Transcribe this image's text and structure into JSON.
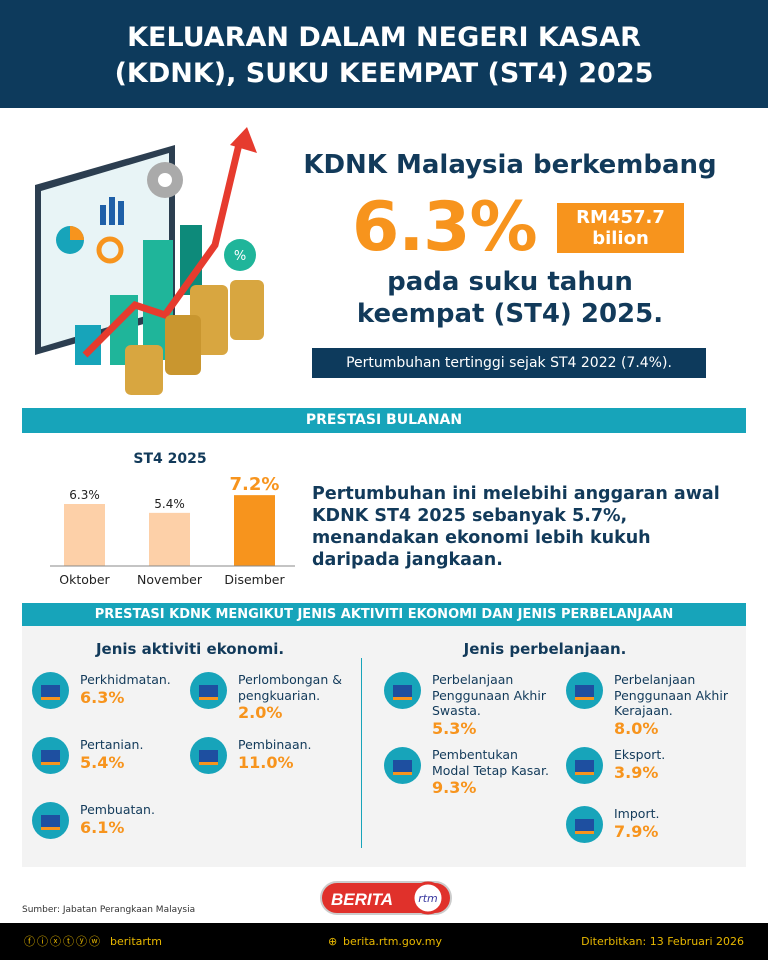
{
  "header": {
    "title_line1": "KELUARAN DALAM NEGERI KASAR",
    "title_line2": "(KDNK), SUKU KEEMPAT (ST4) 2025"
  },
  "hero": {
    "headline": "KDNK Malaysia berkembang",
    "growth": "6.3%",
    "amount_line1": "RM457.7",
    "amount_line2": "bilion",
    "sub_line1": "pada suku tahun",
    "sub_line2": "keempat (ST4) 2025.",
    "note": "Pertumbuhan tertinggi sejak ST4 2022 (7.4%).",
    "illustration_icon": "growth-chart-coins-illustration",
    "percent_badge": "%"
  },
  "monthly": {
    "section_title": "PRESTASI BULANAN",
    "text": "Pertumbuhan ini melebihi anggaran awal KDNK ST4 2025 sebanyak 5.7%, menandakan ekonomi lebih kukuh daripada jangkaan."
  },
  "chart_data": {
    "type": "bar",
    "title": "ST4 2025",
    "categories": [
      "Oktober",
      "November",
      "Disember"
    ],
    "values": [
      6.3,
      5.4,
      7.2
    ],
    "labels": [
      "6.3%",
      "5.4%",
      "7.2%"
    ],
    "colors": [
      "#fdd0a8",
      "#fdd0a8",
      "#f7941d"
    ],
    "ylim": [
      0,
      8
    ],
    "grid": false
  },
  "sectors": {
    "section_title": "PRESTASI KDNK MENGIKUT JENIS AKTIVITI EKONOMI DAN JENIS PERBELANJAAN",
    "activity_title": "Jenis aktiviti ekonomi.",
    "activity": [
      {
        "label": "Perkhidmatan.",
        "value": "6.3%",
        "icon": "truck-icon"
      },
      {
        "label": "Perlombongan & pengkuarian.",
        "value": "2.0%",
        "icon": "oil-rig-icon"
      },
      {
        "label": "Pertanian.",
        "value": "5.4%",
        "icon": "plant-icon"
      },
      {
        "label": "Pembinaan.",
        "value": "11.0%",
        "icon": "crane-icon"
      },
      {
        "label": "Pembuatan.",
        "value": "6.1%",
        "icon": "factory-icon"
      }
    ],
    "spending_title": "Jenis perbelanjaan.",
    "spending": [
      {
        "label": "Perbelanjaan Penggunaan Akhir Swasta.",
        "value": "5.3%",
        "icon": "bar-coin-icon"
      },
      {
        "label": "Perbelanjaan Penggunaan Akhir Kerajaan.",
        "value": "8.0%",
        "icon": "bar-coin-icon"
      },
      {
        "label": "Pembentukan Modal Tetap Kasar.",
        "value": "9.3%",
        "icon": "building-icon"
      },
      {
        "label": "Eksport.",
        "value": "3.9%",
        "icon": "airplane-icon"
      },
      {
        "label": "Import.",
        "value": "7.9%",
        "icon": "cargo-ship-icon"
      }
    ]
  },
  "footer": {
    "source": "Sumber: Jabatan Perangkaan Malaysia",
    "logo_text": "BERITA",
    "logo_sub": "rtm",
    "social_handle": "beritartm",
    "website": "berita.rtm.gov.my",
    "published": "Diterbitkan: 13 Februari 2026"
  },
  "colors": {
    "navy": "#0d3a5c",
    "orange": "#f7941d",
    "teal": "#17a4ba",
    "light_orange": "#fdd0a8"
  }
}
